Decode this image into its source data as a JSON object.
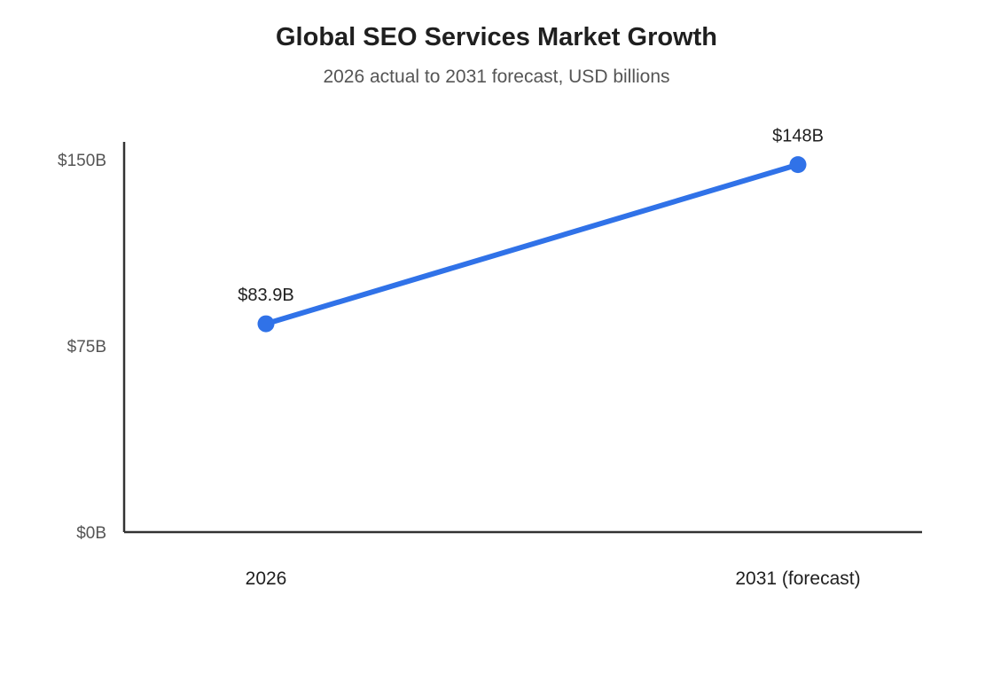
{
  "chart_data": {
    "type": "line",
    "title": "Global SEO Services Market Growth",
    "subtitle": "2026 actual to 2031 forecast, USD billions",
    "categories": [
      "2026",
      "2031 (forecast)"
    ],
    "values": [
      83.9,
      148
    ],
    "data_labels": [
      "$83.9B",
      "$148B"
    ],
    "y_ticks": [
      {
        "value": 0,
        "label": "$0B"
      },
      {
        "value": 75,
        "label": "$75B"
      },
      {
        "value": 150,
        "label": "$150B"
      }
    ],
    "ylim": [
      0,
      150
    ],
    "grid": false,
    "legend": "none",
    "colors": {
      "line": "#3072e8",
      "axis": "#333333"
    }
  }
}
